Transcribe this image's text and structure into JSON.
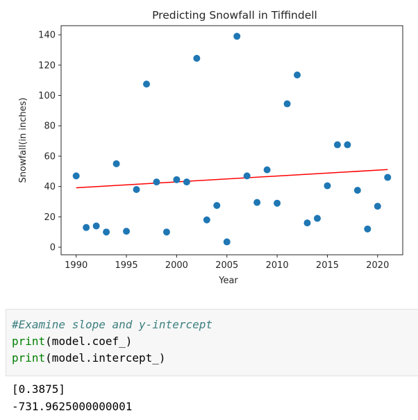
{
  "chart_data": {
    "type": "scatter",
    "title": "Predicting Snowfall in Tiffindell",
    "xlabel": "Year",
    "ylabel": "Snowfall(in inches)",
    "xlim": [
      1988.5,
      2022.5
    ],
    "ylim": [
      -5,
      146
    ],
    "xticks": [
      1990,
      1995,
      2000,
      2005,
      2010,
      2015,
      2020
    ],
    "yticks": [
      0,
      20,
      40,
      60,
      80,
      100,
      120,
      140
    ],
    "grid": false,
    "point_color": "#1f77b4",
    "line_color": "#ff0000",
    "points": [
      {
        "x": 1990,
        "y": 47
      },
      {
        "x": 1991,
        "y": 13
      },
      {
        "x": 1992,
        "y": 14
      },
      {
        "x": 1993,
        "y": 10
      },
      {
        "x": 1994,
        "y": 55
      },
      {
        "x": 1995,
        "y": 10.5
      },
      {
        "x": 1996,
        "y": 38
      },
      {
        "x": 1997,
        "y": 107.5
      },
      {
        "x": 1998,
        "y": 43
      },
      {
        "x": 1999,
        "y": 10
      },
      {
        "x": 2000,
        "y": 44.5
      },
      {
        "x": 2001,
        "y": 43
      },
      {
        "x": 2002,
        "y": 124.5
      },
      {
        "x": 2003,
        "y": 18
      },
      {
        "x": 2004,
        "y": 27.5
      },
      {
        "x": 2005,
        "y": 3.5
      },
      {
        "x": 2006,
        "y": 139
      },
      {
        "x": 2007,
        "y": 47
      },
      {
        "x": 2008,
        "y": 29.5
      },
      {
        "x": 2009,
        "y": 51
      },
      {
        "x": 2010,
        "y": 29
      },
      {
        "x": 2011,
        "y": 94.5
      },
      {
        "x": 2012,
        "y": 113.5
      },
      {
        "x": 2013,
        "y": 16
      },
      {
        "x": 2014,
        "y": 19
      },
      {
        "x": 2015,
        "y": 40.5
      },
      {
        "x": 2016,
        "y": 67.5
      },
      {
        "x": 2017,
        "y": 67.5
      },
      {
        "x": 2018,
        "y": 37.5
      },
      {
        "x": 2019,
        "y": 12
      },
      {
        "x": 2020,
        "y": 27
      },
      {
        "x": 2021,
        "y": 46
      }
    ],
    "regression_line": {
      "x": [
        1990,
        2021
      ],
      "y": [
        39.16,
        51.17
      ]
    }
  },
  "code_cell": {
    "comment": "#Examine slope and y-intercept",
    "line2_kw": "print",
    "line2_arg": "(model.coef_)",
    "line3_kw": "print",
    "line3_arg": "(model.intercept_)"
  },
  "output": {
    "line1": "[0.3875]",
    "line2": "-731.9625000000001"
  }
}
